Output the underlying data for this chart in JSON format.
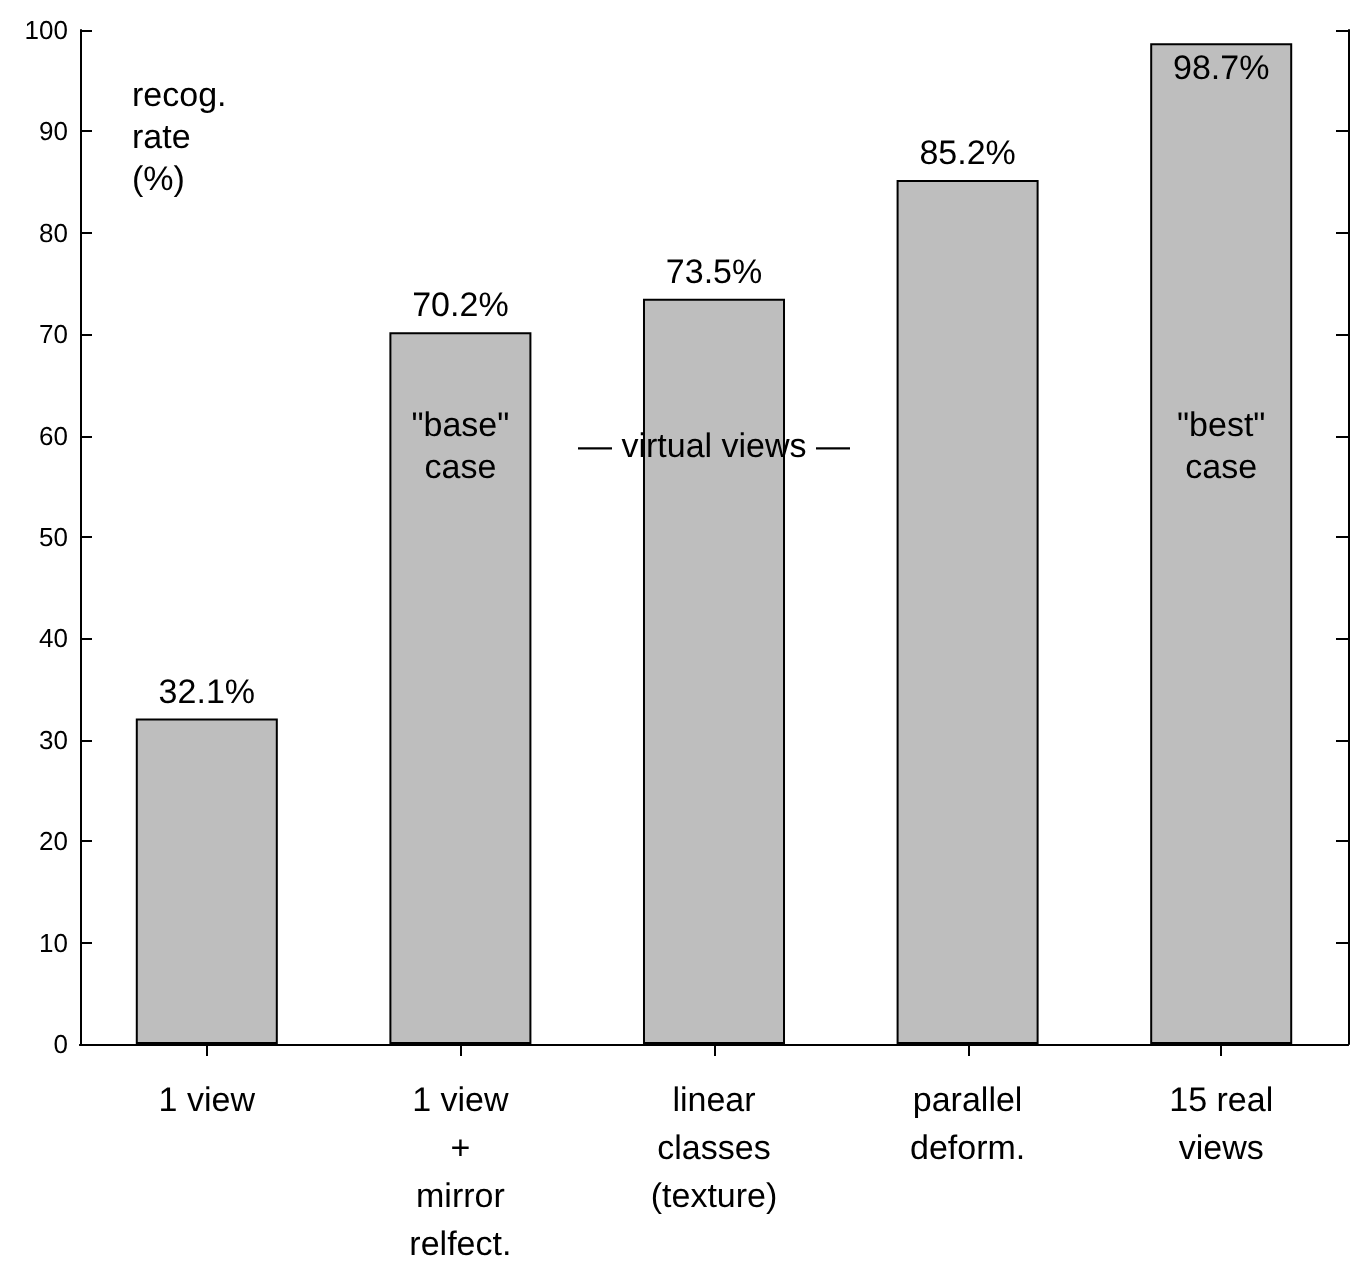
{
  "chart_data": {
    "type": "bar",
    "ylabel": "recog.\nrate\n(%)",
    "categories": [
      "1 view",
      "1 view\n+\nmirror\nrelfect.",
      "linear\nclasses\n(texture)",
      "parallel\ndeform.",
      "15 real\nviews"
    ],
    "values": [
      32.1,
      70.2,
      73.5,
      85.2,
      98.7
    ],
    "value_labels": [
      "32.1%",
      "70.2%",
      "73.5%",
      "85.2%",
      "98.7%"
    ],
    "color": "#bebebe",
    "ylim": [
      0,
      100
    ],
    "yticks": [
      0,
      10,
      20,
      30,
      40,
      50,
      60,
      70,
      80,
      90,
      100
    ],
    "grid": false,
    "annotations": [
      "\"base\"\ncase",
      "— virtual views —",
      "\"best\"\ncase"
    ]
  }
}
